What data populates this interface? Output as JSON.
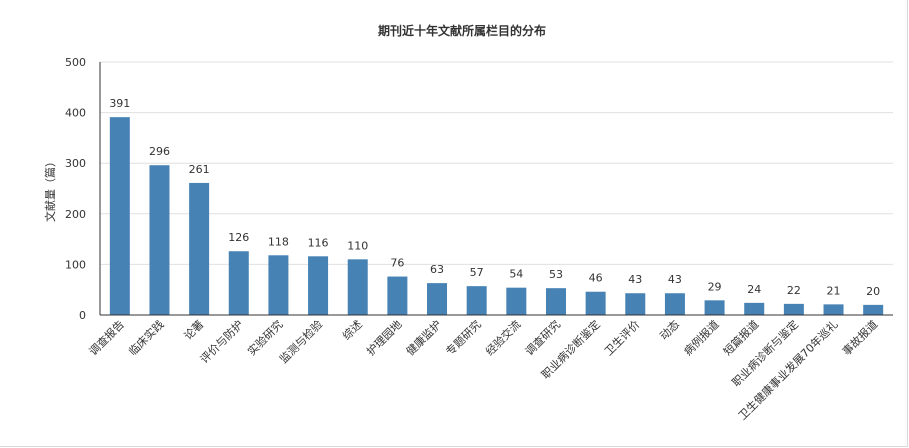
{
  "chart_data": {
    "type": "bar",
    "title": "期刊近十年文献所属栏目的分布",
    "xlabel": "",
    "ylabel": "文献量（篇）",
    "ylim": [
      0,
      500
    ],
    "yticks": [
      0,
      100,
      200,
      300,
      400,
      500
    ],
    "grid": true,
    "legend": "none",
    "bar_color": "#4682b4",
    "categories": [
      "调查报告",
      "临床实践",
      "论著",
      "评价与防护",
      "实验研究",
      "监测与检验",
      "综述",
      "护理园地",
      "健康监护",
      "专题研究",
      "经验交流",
      "调查研究",
      "职业病诊断鉴定",
      "卫生评价",
      "动态",
      "病例报道",
      "短篇报道",
      "职业病诊断与鉴定",
      "卫生健康事业发展70年巡礼",
      "事故报道"
    ],
    "values": [
      391,
      296,
      261,
      126,
      118,
      116,
      110,
      76,
      63,
      57,
      54,
      53,
      46,
      43,
      43,
      29,
      24,
      22,
      21,
      20
    ]
  }
}
